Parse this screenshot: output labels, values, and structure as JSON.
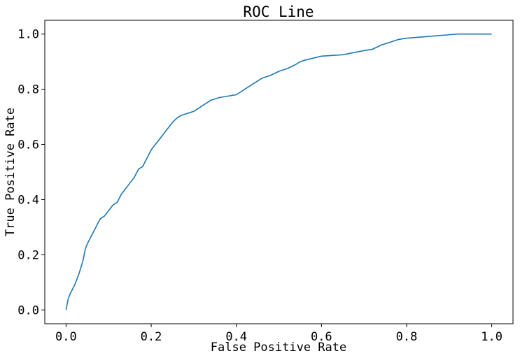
{
  "chart_data": {
    "type": "line",
    "title": "ROC Line",
    "xlabel": "False Positive Rate",
    "ylabel": "True Positive Rate",
    "xlim": [
      -0.05,
      1.05
    ],
    "ylim": [
      -0.05,
      1.05
    ],
    "x_ticks": [
      "0.0",
      "0.2",
      "0.4",
      "0.6",
      "0.8",
      "1.0"
    ],
    "y_ticks": [
      "0.0",
      "0.2",
      "0.4",
      "0.6",
      "0.8",
      "1.0"
    ],
    "grid": false,
    "series": [
      {
        "color": "#1f77b4",
        "x": [
          0.0,
          0.005,
          0.01,
          0.02,
          0.03,
          0.04,
          0.045,
          0.05,
          0.06,
          0.07,
          0.08,
          0.09,
          0.1,
          0.11,
          0.12,
          0.13,
          0.14,
          0.15,
          0.16,
          0.17,
          0.18,
          0.19,
          0.2,
          0.21,
          0.22,
          0.23,
          0.24,
          0.25,
          0.26,
          0.27,
          0.28,
          0.29,
          0.3,
          0.32,
          0.34,
          0.36,
          0.38,
          0.4,
          0.42,
          0.44,
          0.46,
          0.48,
          0.5,
          0.52,
          0.54,
          0.55,
          0.56,
          0.6,
          0.65,
          0.7,
          0.72,
          0.74,
          0.76,
          0.78,
          0.8,
          0.84,
          0.88,
          0.92,
          0.96,
          1.0
        ],
        "y": [
          0.0,
          0.04,
          0.06,
          0.09,
          0.13,
          0.18,
          0.22,
          0.24,
          0.27,
          0.3,
          0.33,
          0.34,
          0.36,
          0.38,
          0.39,
          0.42,
          0.44,
          0.46,
          0.48,
          0.51,
          0.52,
          0.55,
          0.58,
          0.6,
          0.62,
          0.64,
          0.66,
          0.68,
          0.695,
          0.705,
          0.71,
          0.715,
          0.72,
          0.74,
          0.76,
          0.77,
          0.775,
          0.78,
          0.8,
          0.82,
          0.84,
          0.85,
          0.865,
          0.875,
          0.89,
          0.9,
          0.905,
          0.92,
          0.925,
          0.94,
          0.945,
          0.96,
          0.97,
          0.98,
          0.985,
          0.99,
          0.995,
          1.0,
          1.0,
          1.0
        ]
      }
    ]
  }
}
